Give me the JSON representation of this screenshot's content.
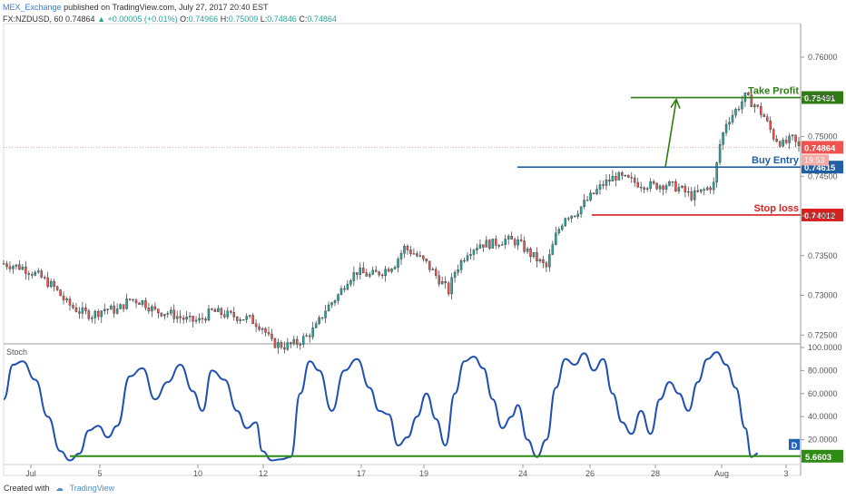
{
  "header": {
    "publisher": "MEX_Exchange",
    "published": "published on TradingView.com, July 27, 2017 20:40 EST",
    "symbol": "FX:NZDUSD, 60",
    "last": "0.74864",
    "change": "+0.00005 (+0.01%)",
    "o_label": "O:",
    "o": "0.74966",
    "h_label": "H:",
    "h": "0.75009",
    "l_label": "L:",
    "l": "0.74846",
    "c_label": "C:",
    "c": "0.74864"
  },
  "footer": {
    "created": "Created with",
    "brand": "TradingView"
  },
  "colors": {
    "up": "#26a69a",
    "down": "#ef5350",
    "candle_outline": "#333333",
    "take_profit": "#2e7d12",
    "buy_entry": "#1f5fa8",
    "stop_loss": "#d92020",
    "last_price_line": "#e88a7a",
    "stoch": "#1f4fb0",
    "stoch_floor": "#2e8b14",
    "axis": "#999999",
    "text": "#555555"
  },
  "chart_data": [
    {
      "type": "candlestick",
      "title": "FX:NZDUSD, 60",
      "ylim": [
        0.724,
        0.764
      ],
      "y_ticks": [
        "0.76000",
        "0.75500",
        "0.75000",
        "0.74500",
        "0.74000",
        "0.73500",
        "0.73000",
        "0.72500"
      ],
      "x_ticks": [
        "Jul",
        "5",
        "10",
        "12",
        "17",
        "19",
        "24",
        "26",
        "28",
        "Aug",
        "3"
      ],
      "close_path": [
        [
          0,
          0.734
        ],
        [
          6,
          0.7335
        ],
        [
          11,
          0.7325
        ],
        [
          16,
          0.731
        ],
        [
          20,
          0.729
        ],
        [
          24,
          0.728
        ],
        [
          28,
          0.7275
        ],
        [
          32,
          0.7283
        ],
        [
          36,
          0.7281
        ],
        [
          40,
          0.7295
        ],
        [
          44,
          0.7292
        ],
        [
          48,
          0.728
        ],
        [
          52,
          0.7278
        ],
        [
          56,
          0.7272
        ],
        [
          59,
          0.7268
        ],
        [
          62,
          0.7268
        ],
        [
          66,
          0.728
        ],
        [
          70,
          0.7276
        ],
        [
          74,
          0.7273
        ],
        [
          78,
          0.727
        ],
        [
          82,
          0.726
        ],
        [
          85,
          0.724
        ],
        [
          89,
          0.7236
        ],
        [
          93,
          0.724
        ],
        [
          96,
          0.7248
        ],
        [
          99,
          0.726
        ],
        [
          102,
          0.7282
        ],
        [
          106,
          0.73
        ],
        [
          109,
          0.732
        ],
        [
          112,
          0.733
        ],
        [
          116,
          0.7325
        ],
        [
          120,
          0.733
        ],
        [
          124,
          0.734
        ],
        [
          127,
          0.736
        ],
        [
          130,
          0.7353
        ],
        [
          134,
          0.734
        ],
        [
          138,
          0.732
        ],
        [
          141,
          0.7305
        ],
        [
          143,
          0.733
        ],
        [
          147,
          0.7355
        ],
        [
          151,
          0.7365
        ],
        [
          155,
          0.7365
        ],
        [
          159,
          0.737
        ],
        [
          163,
          0.7367
        ],
        [
          166,
          0.7355
        ],
        [
          170,
          0.7342
        ],
        [
          172,
          0.7335
        ],
        [
          175,
          0.7375
        ],
        [
          178,
          0.74
        ],
        [
          181,
          0.7403
        ],
        [
          185,
          0.742
        ],
        [
          190,
          0.744
        ],
        [
          194,
          0.745
        ],
        [
          198,
          0.7445
        ],
        [
          202,
          0.744
        ],
        [
          206,
          0.7438
        ],
        [
          210,
          0.744
        ],
        [
          214,
          0.7435
        ],
        [
          218,
          0.7425
        ],
        [
          222,
          0.7432
        ],
        [
          225,
          0.744
        ],
        [
          227,
          0.749
        ],
        [
          229,
          0.7518
        ],
        [
          232,
          0.7533
        ],
        [
          235,
          0.755
        ],
        [
          238,
          0.754
        ],
        [
          241,
          0.7525
        ],
        [
          244,
          0.75
        ],
        [
          247,
          0.749
        ],
        [
          250,
          0.7497
        ],
        [
          252,
          0.7486
        ]
      ],
      "last_price": "0.74864",
      "countdown": "19:53",
      "annotations": [
        {
          "label": "Take Profit",
          "value": 0.75491,
          "value_label": "0.75491",
          "color": "take_profit"
        },
        {
          "label": "Buy Entry",
          "value": 0.74615,
          "value_label": "0.74615",
          "color": "buy_entry"
        },
        {
          "label": "Stop loss",
          "value": 0.74012,
          "value_label": "0.74012",
          "color": "stop_loss"
        }
      ]
    },
    {
      "type": "line",
      "title": "Stoch",
      "ylim": [
        0,
        100
      ],
      "y_ticks": [
        "100.0000",
        "80.0000",
        "60.0000",
        "40.0000",
        "20.0000"
      ],
      "series": [
        {
          "values": [
            [
              0,
              55
            ],
            [
              3,
              85
            ],
            [
              6,
              88
            ],
            [
              10,
              72
            ],
            [
              14,
              40
            ],
            [
              18,
              10
            ],
            [
              21,
              2
            ],
            [
              24,
              8
            ],
            [
              27,
              28
            ],
            [
              30,
              32
            ],
            [
              33,
              22
            ],
            [
              36,
              32
            ],
            [
              40,
              75
            ],
            [
              44,
              82
            ],
            [
              48,
              55
            ],
            [
              52,
              70
            ],
            [
              56,
              85
            ],
            [
              60,
              62
            ],
            [
              63,
              45
            ],
            [
              66,
              80
            ],
            [
              70,
              72
            ],
            [
              74,
              45
            ],
            [
              77,
              30
            ],
            [
              80,
              35
            ],
            [
              82,
              10
            ],
            [
              85,
              2
            ],
            [
              88,
              3
            ],
            [
              91,
              5
            ],
            [
              94,
              60
            ],
            [
              97,
              88
            ],
            [
              100,
              80
            ],
            [
              104,
              45
            ],
            [
              108,
              80
            ],
            [
              112,
              90
            ],
            [
              116,
              65
            ],
            [
              119,
              45
            ],
            [
              122,
              42
            ],
            [
              125,
              15
            ],
            [
              128,
              22
            ],
            [
              131,
              40
            ],
            [
              134,
              60
            ],
            [
              137,
              38
            ],
            [
              140,
              15
            ],
            [
              143,
              60
            ],
            [
              146,
              88
            ],
            [
              149,
              92
            ],
            [
              152,
              82
            ],
            [
              155,
              55
            ],
            [
              158,
              30
            ],
            [
              161,
              40
            ],
            [
              163,
              50
            ],
            [
              166,
              20
            ],
            [
              169,
              5
            ],
            [
              172,
              20
            ],
            [
              175,
              65
            ],
            [
              178,
              90
            ],
            [
              181,
              85
            ],
            [
              184,
              95
            ],
            [
              187,
              80
            ],
            [
              190,
              90
            ],
            [
              193,
              60
            ],
            [
              196,
              35
            ],
            [
              199,
              25
            ],
            [
              202,
              45
            ],
            [
              205,
              25
            ],
            [
              208,
              55
            ],
            [
              211,
              70
            ],
            [
              214,
              60
            ],
            [
              217,
              45
            ],
            [
              220,
              70
            ],
            [
              223,
              90
            ],
            [
              226,
              96
            ],
            [
              229,
              85
            ],
            [
              232,
              65
            ],
            [
              235,
              30
            ],
            [
              237,
              5
            ],
            [
              239,
              8
            ]
          ]
        }
      ],
      "floor": {
        "value": 5.6603,
        "label": "5.6603"
      },
      "badge": "D"
    }
  ]
}
